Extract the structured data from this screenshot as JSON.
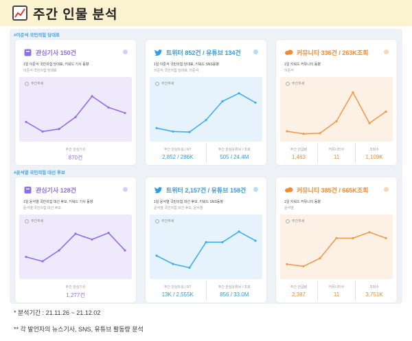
{
  "title": "주간 인물 분석",
  "sections": [
    {
      "label": "#이준석 국민의힘 당대표"
    },
    {
      "label": "#윤석열 국민의힘 대선 후보"
    }
  ],
  "week_label": "주간추세",
  "cards": [
    {
      "title": "관심기사 150건",
      "sub1": "1일 이준석 국민의힘 당대표, 키워드 기사 동향",
      "sub2": "이준석 국민의힘 당대표",
      "accent": "#8b6ff0",
      "bg": "#eeeafc",
      "line": "#8b6ff0",
      "icon": "news-icon",
      "stats": [
        {
          "label": "주간 관심기사",
          "value": "870건"
        }
      ]
    },
    {
      "title": "트위터 852건 / 유튜브 134건",
      "sub1": "1일 이준석 국민의힘 당대표, 키워드 SNS동향",
      "sub2": "이준석 국민의힘 당대표, 이준석",
      "accent": "#2f9de0",
      "bg": "#e6f3fc",
      "line": "#39aef2",
      "icon": "twitter-icon",
      "stats": [
        {
          "label": "주간 관심트윗 / RT",
          "value": "2,852 / 286K"
        },
        {
          "label": "주간 관심유튜브 / 조회",
          "value": "505 / 24.4M"
        }
      ]
    },
    {
      "title": "커뮤니티 336건 / 263K조회",
      "sub1": "1일 키워드 커뮤니티 동향",
      "sub2": "이준석",
      "accent": "#f28a2e",
      "bg": "#fdf1e6",
      "line": "#f39a48",
      "icon": "community-icon",
      "stats": [
        {
          "label": "주간 언급량",
          "value": "1,463"
        },
        {
          "label": "커뮤니티수",
          "value": "11"
        },
        {
          "label": "조회수",
          "value": "1,109K"
        }
      ]
    },
    {
      "title": "관심기사 128건",
      "sub1": "1일 윤석열 국민의힘 대선 후보, 키워드 기사 동향",
      "sub2": "윤석열 국민의힘 대선 후보",
      "accent": "#8b6ff0",
      "bg": "#eeeafc",
      "line": "#8b6ff0",
      "icon": "news-icon",
      "stats": [
        {
          "label": "주간 관심기사",
          "value": "1,277건"
        }
      ]
    },
    {
      "title": "트위터 2,157건 / 유튜브 158건",
      "sub1": "1일 윤석열 국민의힘 대선 후보, 키워드 SNS동향",
      "sub2": "윤석열 국민의힘 대선 후보, 윤석열",
      "accent": "#2f9de0",
      "bg": "#e6f3fc",
      "line": "#39aef2",
      "icon": "twitter-icon",
      "stats": [
        {
          "label": "주간 관심트윗 / RT",
          "value": "13K / 2,555K"
        },
        {
          "label": "주간 관심유튜브 / 조회",
          "value": "856 / 33.0M"
        }
      ]
    },
    {
      "title": "커뮤니티 385건 / 665K조회",
      "sub1": "1일 키워드 커뮤니티 동향",
      "sub2": "윤석열",
      "accent": "#f28a2e",
      "bg": "#fdf1e6",
      "line": "#f39a48",
      "icon": "community-icon",
      "stats": [
        {
          "label": "주간 언급량",
          "value": "2,387"
        },
        {
          "label": "커뮤니티수",
          "value": "11"
        },
        {
          "label": "조회수",
          "value": "3,751K"
        }
      ]
    }
  ],
  "chart_data": [
    {
      "type": "line",
      "series": [
        {
          "values": [
            40,
            10,
            18,
            55,
            120,
            85,
            68
          ]
        }
      ],
      "ylim": [
        0,
        150
      ]
    },
    {
      "type": "line",
      "series": [
        {
          "values": [
            25,
            12,
            10,
            55,
            125,
            155,
            120
          ]
        }
      ],
      "ylim": [
        0,
        180
      ]
    },
    {
      "type": "line",
      "series": [
        {
          "values": [
            18,
            5,
            8,
            70,
            220,
            60,
            120
          ]
        }
      ],
      "ylim": [
        0,
        250
      ]
    },
    {
      "type": "line",
      "series": [
        {
          "values": [
            35,
            25,
            50,
            88,
            75,
            90,
            50
          ]
        }
      ],
      "ylim": [
        0,
        110
      ]
    },
    {
      "type": "line",
      "series": [
        {
          "values": [
            110,
            55,
            30,
            200,
            200,
            270,
            210
          ]
        }
      ],
      "ylim": [
        0,
        320
      ]
    },
    {
      "type": "line",
      "series": [
        {
          "values": [
            20,
            15,
            35,
            85,
            85,
            100,
            85
          ]
        }
      ],
      "ylim": [
        0,
        120
      ]
    }
  ],
  "footnotes": [
    "* 분석기간 : 21.11.26 ~ 21.12.02",
    "** 각 발언자의 뉴스기사, SNS, 유튜브 활동량 분석"
  ]
}
